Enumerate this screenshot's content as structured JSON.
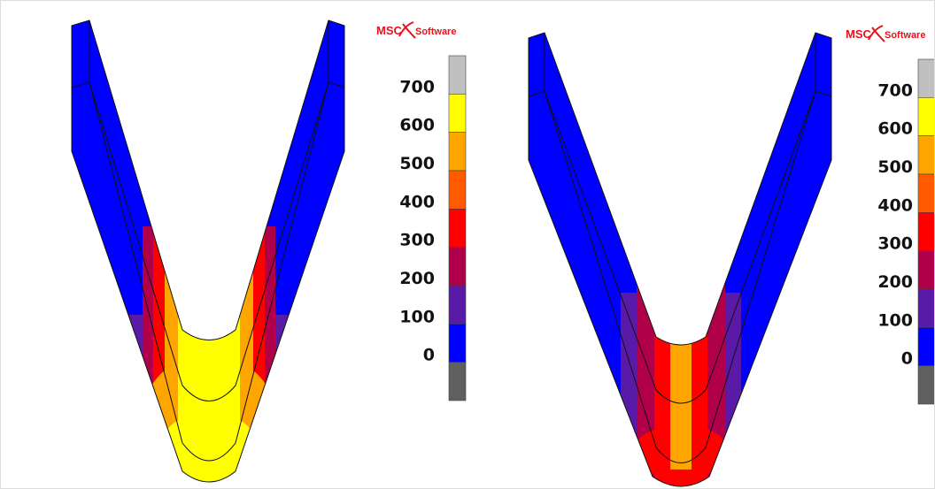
{
  "panels": [
    {
      "logo": {
        "brand": "MSC",
        "product": "Software"
      },
      "legend": {
        "labels": [
          "700",
          "600",
          "500",
          "400",
          "300",
          "200",
          "100",
          "0"
        ],
        "colors": [
          "#c0c0c0",
          "#ffff00",
          "#ffa500",
          "#ff5a00",
          "#ff0000",
          "#b0004a",
          "#5a1aa8",
          "#0000ff",
          "#5f5f5f"
        ]
      }
    },
    {
      "logo": {
        "brand": "MSC",
        "product": "Software"
      },
      "legend": {
        "labels": [
          "700",
          "600",
          "500",
          "400",
          "300",
          "200",
          "100",
          "0"
        ],
        "colors": [
          "#c0c0c0",
          "#ffff00",
          "#ffa500",
          "#ff5a00",
          "#ff0000",
          "#b0004a",
          "#5a1aa8",
          "#0000ff",
          "#5f5f5f"
        ]
      }
    }
  ]
}
